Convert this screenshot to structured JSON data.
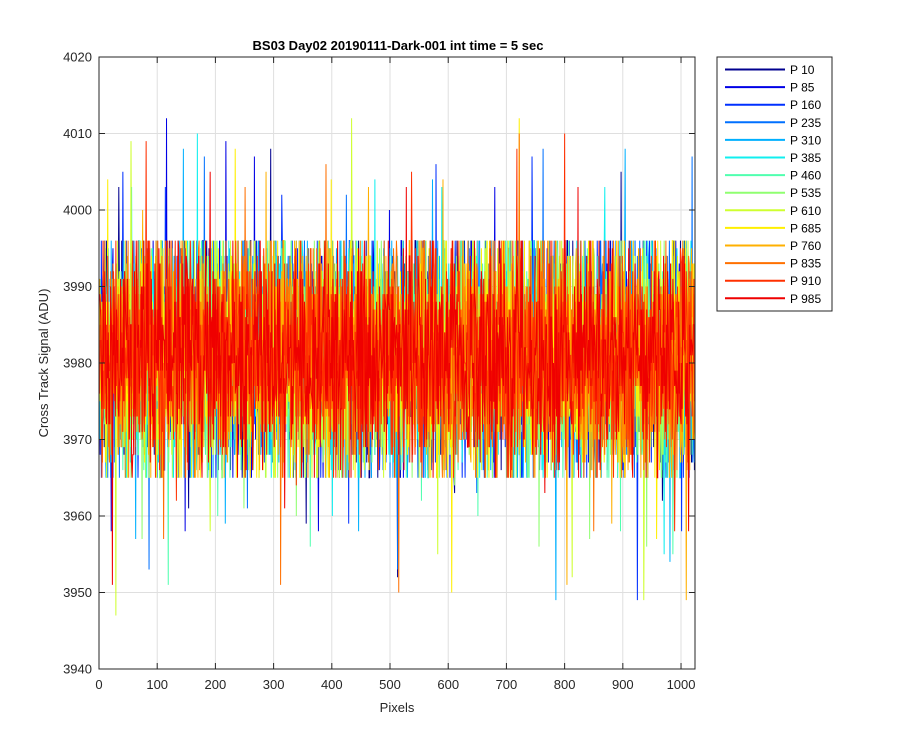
{
  "chart_data": {
    "type": "line",
    "title": "BS03 Day02 20190111-Dark-001 int time = 5 sec",
    "xlabel": "Pixels",
    "ylabel": "Cross Track Signal (ADU)",
    "xlim": [
      0,
      1024
    ],
    "ylim": [
      3940,
      4020
    ],
    "xticks": [
      0,
      100,
      200,
      300,
      400,
      500,
      600,
      700,
      800,
      900,
      1000
    ],
    "yticks": [
      3940,
      3950,
      3960,
      3970,
      3980,
      3990,
      4000,
      4010,
      4020
    ],
    "grid": true,
    "legend_position": "outside-top-right",
    "data_note": "Each series is dense per-pixel noise around ~3981 ADU, mostly within 3963–3999, with sparse spikes between ~3947 and ~4012.",
    "noise_center": 3981,
    "noise_spread": 9,
    "n_points": 1024,
    "series": [
      {
        "name": "P 10",
        "color": "#00008f",
        "spikes": [
          [
            33,
            4003
          ],
          [
            153,
            3961
          ],
          [
            294,
            4008
          ],
          [
            355,
            3959
          ],
          [
            512,
            3952
          ],
          [
            610,
            3963
          ],
          [
            896,
            4005
          ],
          [
            967,
            3962
          ]
        ]
      },
      {
        "name": "P 85",
        "color": "#0000e6",
        "spikes": [
          [
            20,
            3958
          ],
          [
            115,
            4012
          ],
          [
            147,
            3958
          ],
          [
            217,
            4009
          ],
          [
            266,
            4007
          ],
          [
            376,
            3958
          ],
          [
            498,
            4000
          ],
          [
            679,
            4003
          ]
        ]
      },
      {
        "name": "P 160",
        "color": "#0030ff",
        "spikes": [
          [
            40,
            4005
          ],
          [
            113,
            4003
          ],
          [
            313,
            4002
          ],
          [
            428,
            3959
          ],
          [
            578,
            4006
          ],
          [
            743,
            4007
          ],
          [
            924,
            3949
          ],
          [
            1000,
            3958
          ]
        ]
      },
      {
        "name": "P 235",
        "color": "#0070ff",
        "spikes": [
          [
            85,
            3953
          ],
          [
            180,
            4007
          ],
          [
            254,
            3961
          ],
          [
            424,
            4002
          ],
          [
            512,
            3953
          ],
          [
            648,
            3963
          ],
          [
            762,
            4008
          ],
          [
            1018,
            4007
          ]
        ]
      },
      {
        "name": "P 310",
        "color": "#00b0ff",
        "spikes": [
          [
            62,
            3957
          ],
          [
            144,
            4008
          ],
          [
            216,
            3959
          ],
          [
            445,
            3958
          ],
          [
            572,
            4004
          ],
          [
            784,
            3949
          ],
          [
            903,
            4008
          ],
          [
            980,
            3954
          ]
        ]
      },
      {
        "name": "P 385",
        "color": "#10efef",
        "spikes": [
          [
            55,
            4003
          ],
          [
            168,
            4010
          ],
          [
            400,
            3960
          ],
          [
            473,
            4004
          ],
          [
            588,
            4003
          ],
          [
            868,
            4003
          ],
          [
            970,
            3955
          ]
        ]
      },
      {
        "name": "P 460",
        "color": "#50ffaf",
        "spikes": [
          [
            118,
            3951
          ],
          [
            203,
            3960
          ],
          [
            362,
            3956
          ],
          [
            553,
            3962
          ],
          [
            650,
            3960
          ],
          [
            895,
            3958
          ],
          [
            985,
            3955
          ]
        ]
      },
      {
        "name": "P 535",
        "color": "#8fff70",
        "spikes": [
          [
            73,
            3957
          ],
          [
            248,
            3961
          ],
          [
            338,
            3960
          ],
          [
            610,
            3964
          ],
          [
            755,
            3956
          ],
          [
            842,
            3957
          ],
          [
            940,
            3956
          ]
        ]
      },
      {
        "name": "P 610",
        "color": "#cfff30",
        "spikes": [
          [
            28,
            3947
          ],
          [
            54,
            4009
          ],
          [
            190,
            3958
          ],
          [
            433,
            4012
          ],
          [
            581,
            3955
          ],
          [
            812,
            3952
          ],
          [
            935,
            3949
          ]
        ]
      },
      {
        "name": "P 685",
        "color": "#ffef00",
        "spikes": [
          [
            14,
            4004
          ],
          [
            233,
            4008
          ],
          [
            398,
            4004
          ],
          [
            605,
            3950
          ],
          [
            721,
            4012
          ],
          [
            763,
            3968
          ],
          [
            957,
            3957
          ]
        ]
      },
      {
        "name": "P 760",
        "color": "#ffb000",
        "spikes": [
          [
            74,
            4000
          ],
          [
            286,
            4005
          ],
          [
            462,
            4003
          ],
          [
            590,
            4004
          ],
          [
            803,
            3951
          ],
          [
            880,
            3959
          ],
          [
            1008,
            3949
          ]
        ]
      },
      {
        "name": "P 835",
        "color": "#ff7000",
        "spikes": [
          [
            110,
            3957
          ],
          [
            250,
            4003
          ],
          [
            311,
            3951
          ],
          [
            389,
            4006
          ],
          [
            514,
            3950
          ],
          [
            721,
            4010
          ],
          [
            849,
            3958
          ]
        ]
      },
      {
        "name": "P 910",
        "color": "#ff3000",
        "spikes": [
          [
            80,
            4009
          ],
          [
            132,
            3962
          ],
          [
            338,
            3964
          ],
          [
            536,
            4005
          ],
          [
            717,
            4008
          ],
          [
            799,
            4010
          ],
          [
            988,
            3958
          ]
        ]
      },
      {
        "name": "P 985",
        "color": "#ef0000",
        "spikes": [
          [
            22,
            3951
          ],
          [
            190,
            4005
          ],
          [
            318,
            3961
          ],
          [
            527,
            4003
          ],
          [
            765,
            3963
          ],
          [
            822,
            4003
          ],
          [
            1012,
            3958
          ]
        ]
      }
    ]
  }
}
